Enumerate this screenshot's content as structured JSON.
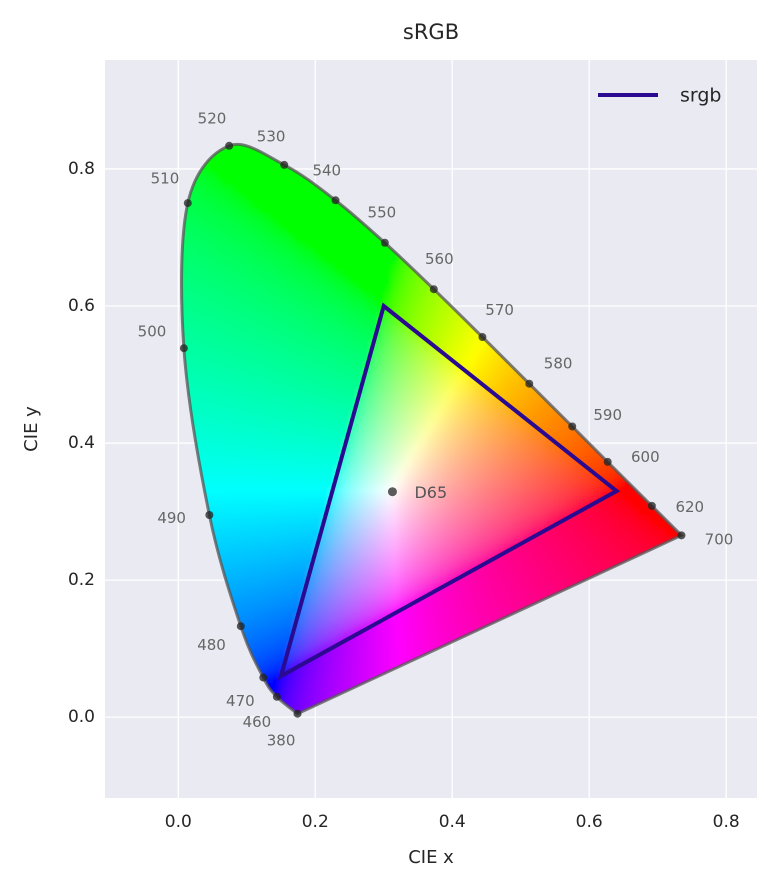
{
  "chart_data": {
    "type": "chromaticity",
    "title": "sRGB",
    "x_label": "CIE x",
    "y_label": "CIE y",
    "xlim": [
      -0.107,
      0.845
    ],
    "ylim": [
      -0.118,
      0.959
    ],
    "xticks": [
      {
        "value": 0,
        "label": "0.0"
      },
      0.2,
      0.4,
      0.6,
      0.8
    ],
    "yticks": [
      {
        "value": 0,
        "label": "0.0"
      },
      0.2,
      0.4,
      0.6,
      0.8
    ],
    "grid": true,
    "legend": "upper right",
    "locus": {
      "color": "#555555",
      "labels": [
        "380",
        "460",
        "470",
        "480",
        "490",
        "500",
        "510",
        "520",
        "530",
        "540",
        "550",
        "560",
        "570",
        "580",
        "590",
        "600",
        "620",
        "700"
      ],
      "x": [
        0.1741,
        0.144,
        0.1241,
        0.0913,
        0.0454,
        0.0082,
        0.0139,
        0.0743,
        0.1547,
        0.2296,
        0.3016,
        0.3731,
        0.4441,
        0.5125,
        0.5752,
        0.627,
        0.6915,
        0.7347
      ],
      "y": [
        0.005,
        0.0297,
        0.0578,
        0.1327,
        0.295,
        0.5384,
        0.7502,
        0.8338,
        0.8059,
        0.7543,
        0.6923,
        0.6245,
        0.5547,
        0.4866,
        0.4242,
        0.3725,
        0.3083,
        0.2653
      ]
    },
    "series": [
      {
        "name": "srgb",
        "color": "#2a0a90",
        "x": [
          0.64,
          0.3,
          0.15
        ],
        "y": [
          0.33,
          0.6,
          0.06
        ]
      }
    ],
    "white_point": {
      "label": "D65",
      "x": 0.3127,
      "y": 0.329
    }
  }
}
